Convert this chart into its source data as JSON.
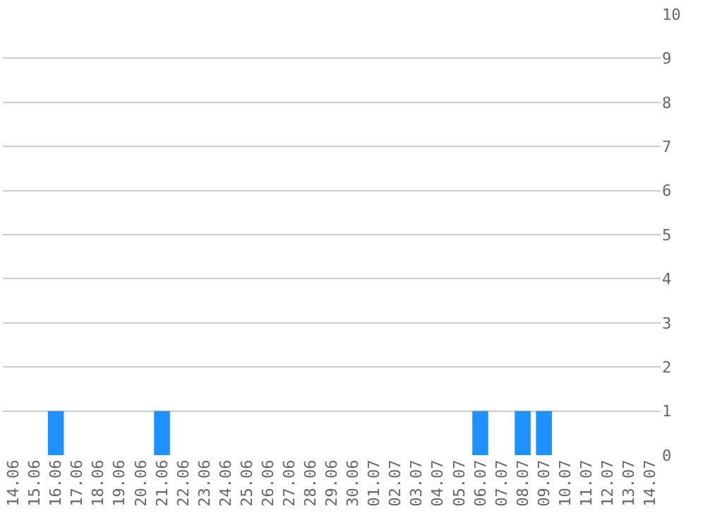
{
  "chart_data": {
    "type": "bar",
    "categories": [
      "14.06",
      "15.06",
      "16.06",
      "17.06",
      "18.06",
      "19.06",
      "20.06",
      "21.06",
      "22.06",
      "23.06",
      "24.06",
      "25.06",
      "26.06",
      "27.06",
      "28.06",
      "29.06",
      "30.06",
      "01.07",
      "02.07",
      "03.07",
      "04.07",
      "05.07",
      "06.07",
      "07.07",
      "08.07",
      "09.07",
      "10.07",
      "11.07",
      "12.07",
      "13.07",
      "14.07"
    ],
    "values": [
      0,
      0,
      1,
      0,
      0,
      0,
      0,
      1,
      0,
      0,
      0,
      0,
      0,
      0,
      0,
      0,
      0,
      0,
      0,
      0,
      0,
      0,
      1,
      0,
      1,
      1,
      0,
      0,
      0,
      0,
      0
    ],
    "color": "#1e90ff",
    "ylim": [
      0,
      10
    ],
    "yticks": [
      0,
      1,
      2,
      3,
      4,
      5,
      6,
      7,
      8,
      9,
      10
    ],
    "grid": "y",
    "legend": false
  }
}
